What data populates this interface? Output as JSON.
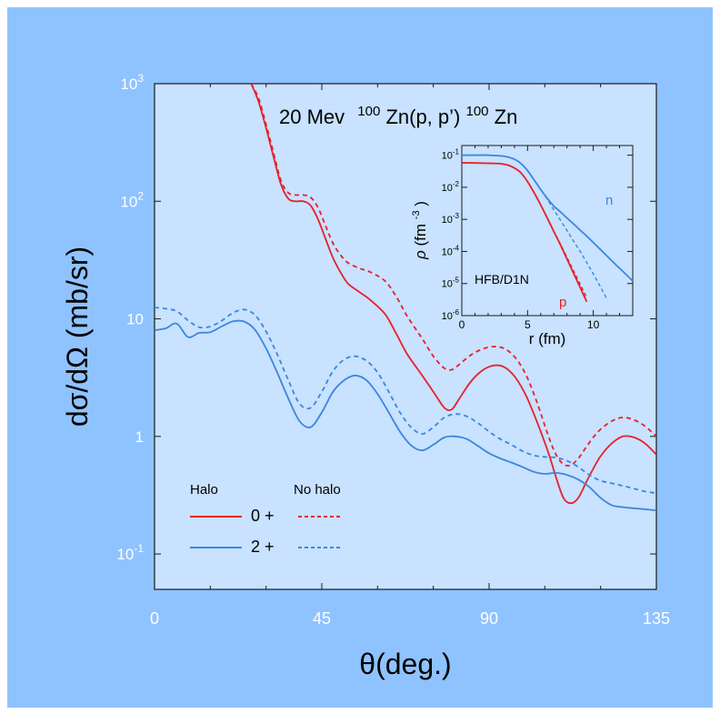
{
  "chart_data": {
    "type": "line",
    "title": "20 Mev",
    "title_reaction": {
      "target_mass": "100",
      "target": "Zn(p, p’)",
      "product_mass": "100",
      "product": "Zn"
    },
    "xlabel": "θ(deg.)",
    "ylabel": "dσ/dΩ (mb/sr)",
    "xlim": [
      0,
      135
    ],
    "ylim": [
      0.05,
      1000
    ],
    "yscale": "log",
    "x_ticks": [
      0,
      45,
      90,
      135
    ],
    "y_ticks": [
      {
        "value": 1000,
        "label": "10",
        "sup": "3"
      },
      {
        "value": 100,
        "label": "10",
        "sup": "2"
      },
      {
        "value": 10,
        "label": "10",
        "sup": ""
      },
      {
        "value": 1,
        "label": "1",
        "sup": ""
      },
      {
        "value": 0.1,
        "label": "10",
        "sup": "-1"
      }
    ],
    "legend": {
      "position": "bottom-left",
      "col_halo": "Halo",
      "col_nohalo": "No halo",
      "row_0": "0 +",
      "row_2": "2 +"
    },
    "series": [
      {
        "name": "0 + Halo",
        "style": "solid",
        "color": "#e8202a",
        "x": [
          26,
          28,
          30,
          32,
          34,
          36,
          38,
          40,
          42,
          44,
          46,
          48,
          50,
          52,
          55,
          58,
          62,
          65,
          68,
          72,
          75,
          78,
          80,
          82,
          85,
          88,
          91,
          94,
          97,
          100,
          103,
          106,
          108,
          110,
          112,
          114,
          116,
          118,
          120,
          123,
          126,
          129,
          132,
          135
        ],
        "y": [
          1000,
          700,
          420,
          240,
          140,
          105,
          100,
          100,
          92,
          70,
          48,
          33,
          25,
          20,
          17,
          14.5,
          11,
          7.5,
          5,
          3.3,
          2.4,
          1.75,
          1.7,
          2.1,
          2.9,
          3.6,
          4.0,
          3.9,
          3.2,
          2.2,
          1.3,
          0.72,
          0.45,
          0.3,
          0.27,
          0.3,
          0.4,
          0.53,
          0.68,
          0.87,
          1.0,
          0.98,
          0.87,
          0.7
        ]
      },
      {
        "name": "0 + No halo",
        "style": "dashed",
        "color": "#e8202a",
        "x": [
          26,
          28,
          30,
          32,
          34,
          36,
          38,
          40,
          42,
          44,
          46,
          48,
          50,
          52,
          55,
          58,
          62,
          65,
          68,
          72,
          75,
          78,
          80,
          82,
          85,
          88,
          91,
          94,
          97,
          100,
          103,
          106,
          108,
          110,
          112,
          114,
          116,
          118,
          120,
          123,
          126,
          129,
          132,
          135
        ],
        "y": [
          1000,
          750,
          450,
          260,
          150,
          118,
          113,
          113,
          108,
          88,
          62,
          44,
          35,
          30,
          27,
          25,
          21,
          15.5,
          10.5,
          6.8,
          4.8,
          3.8,
          3.7,
          4.1,
          4.9,
          5.5,
          5.8,
          5.6,
          4.7,
          3.3,
          1.9,
          1.0,
          0.7,
          0.58,
          0.57,
          0.65,
          0.8,
          0.98,
          1.15,
          1.35,
          1.45,
          1.38,
          1.22,
          1.0
        ]
      },
      {
        "name": "2 + Halo",
        "style": "solid",
        "color": "#3b86e0",
        "x": [
          0,
          3,
          6,
          9,
          12,
          15,
          18,
          21,
          24,
          27,
          30,
          33,
          36,
          39,
          42,
          45,
          48,
          51,
          54,
          57,
          60,
          63,
          66,
          69,
          72,
          75,
          78,
          81,
          84,
          87,
          90,
          93,
          96,
          99,
          102,
          105,
          108,
          111,
          114,
          117,
          120,
          123,
          126,
          129,
          132,
          135
        ],
        "y": [
          8.0,
          8.3,
          9.1,
          7.0,
          7.6,
          7.7,
          8.6,
          9.5,
          9.5,
          8.1,
          5.6,
          3.5,
          2.1,
          1.35,
          1.2,
          1.6,
          2.4,
          3.0,
          3.3,
          3.0,
          2.3,
          1.6,
          1.1,
          0.84,
          0.76,
          0.85,
          0.98,
          1.0,
          0.95,
          0.83,
          0.72,
          0.65,
          0.6,
          0.55,
          0.5,
          0.48,
          0.49,
          0.47,
          0.43,
          0.37,
          0.3,
          0.26,
          0.25,
          0.245,
          0.24,
          0.235
        ]
      },
      {
        "name": "2 + No halo",
        "style": "dashed",
        "color": "#3b86e0",
        "x": [
          0,
          3,
          6,
          9,
          12,
          15,
          18,
          21,
          24,
          27,
          30,
          33,
          36,
          39,
          42,
          45,
          48,
          51,
          54,
          57,
          60,
          63,
          66,
          69,
          72,
          75,
          78,
          81,
          84,
          87,
          90,
          93,
          96,
          99,
          102,
          105,
          108,
          111,
          114,
          117,
          120,
          123,
          126,
          129,
          132,
          135
        ],
        "y": [
          12.5,
          12.2,
          11.6,
          9.7,
          8.5,
          8.6,
          9.6,
          11.2,
          12.0,
          10.8,
          7.8,
          5.0,
          3.0,
          1.9,
          1.75,
          2.4,
          3.6,
          4.5,
          4.8,
          4.4,
          3.5,
          2.4,
          1.6,
          1.2,
          1.05,
          1.2,
          1.45,
          1.55,
          1.48,
          1.3,
          1.1,
          0.95,
          0.85,
          0.75,
          0.69,
          0.67,
          0.66,
          0.62,
          0.55,
          0.47,
          0.42,
          0.4,
          0.38,
          0.36,
          0.34,
          0.33
        ]
      }
    ],
    "inset": {
      "type": "line",
      "xlabel": "r (fm)",
      "ylabel_main": "ρ",
      "ylabel_unit": "(fm",
      "ylabel_sup": "-3",
      "ylabel_close": ")",
      "annotation": "HFB/D1N",
      "label_n": "n",
      "label_p": "p",
      "xlim": [
        0,
        13
      ],
      "ylim": [
        1e-06,
        0.2
      ],
      "yscale": "log",
      "x_ticks": [
        0,
        5,
        10
      ],
      "y_ticks": [
        {
          "value": 0.1,
          "sup": "-1"
        },
        {
          "value": 0.01,
          "sup": "-2"
        },
        {
          "value": 0.001,
          "sup": "-3"
        },
        {
          "value": 0.0001,
          "sup": "-4"
        },
        {
          "value": 1e-05,
          "sup": "-5"
        },
        {
          "value": 1e-06,
          "sup": "-6"
        }
      ],
      "series": [
        {
          "name": "n",
          "style": "solid",
          "color": "#3b86e0",
          "x": [
            0,
            1,
            2,
            3,
            3.5,
            4,
            4.5,
            5,
            5.5,
            6,
            6.5,
            7,
            7.5,
            8,
            8.5,
            9,
            9.5,
            10,
            10.5,
            11,
            11.5,
            12,
            12.5,
            13
          ],
          "y": [
            0.1,
            0.1,
            0.1,
            0.095,
            0.088,
            0.075,
            0.055,
            0.033,
            0.017,
            0.0085,
            0.0045,
            0.0026,
            0.0017,
            0.0011,
            0.00072,
            0.00046,
            0.0003,
            0.00019,
            0.00012,
            7.5e-05,
            4.7e-05,
            3e-05,
            1.9e-05,
            1.2e-05
          ]
        },
        {
          "name": "n no halo",
          "style": "dashed",
          "color": "#3b86e0",
          "x": [
            0,
            1,
            2,
            3,
            3.5,
            4,
            4.5,
            5,
            5.5,
            6,
            6.5,
            7,
            7.5,
            8,
            8.5,
            9,
            9.5,
            10,
            10.5,
            11
          ],
          "y": [
            0.1,
            0.1,
            0.1,
            0.095,
            0.088,
            0.075,
            0.055,
            0.033,
            0.017,
            0.0085,
            0.0042,
            0.002,
            0.00095,
            0.00045,
            0.00021,
            0.0001,
            4.5e-05,
            2e-05,
            8.5e-06,
            3.5e-06
          ]
        },
        {
          "name": "p",
          "style": "solid",
          "color": "#e8202a",
          "x": [
            0,
            1,
            2,
            3,
            3.5,
            4,
            4.5,
            5,
            5.5,
            6,
            6.5,
            7,
            7.5,
            8,
            8.5,
            9,
            9.5
          ],
          "y": [
            0.058,
            0.057,
            0.056,
            0.054,
            0.049,
            0.04,
            0.028,
            0.015,
            0.0068,
            0.0028,
            0.0011,
            0.00042,
            0.00016,
            5.8e-05,
            2.1e-05,
            7.5e-06,
            2.7e-06
          ]
        },
        {
          "name": "p no halo",
          "style": "dashed",
          "color": "#e8202a",
          "x": [
            0,
            1,
            2,
            3,
            3.5,
            4,
            4.5,
            5,
            5.5,
            6,
            6.5,
            7,
            7.5,
            8,
            8.5,
            9,
            9.5
          ],
          "y": [
            0.058,
            0.057,
            0.056,
            0.054,
            0.049,
            0.04,
            0.028,
            0.015,
            0.0068,
            0.0028,
            0.0011,
            0.00043,
            0.00017,
            6.5e-05,
            2.5e-05,
            9.5e-06,
            3.6e-06
          ]
        }
      ]
    }
  }
}
